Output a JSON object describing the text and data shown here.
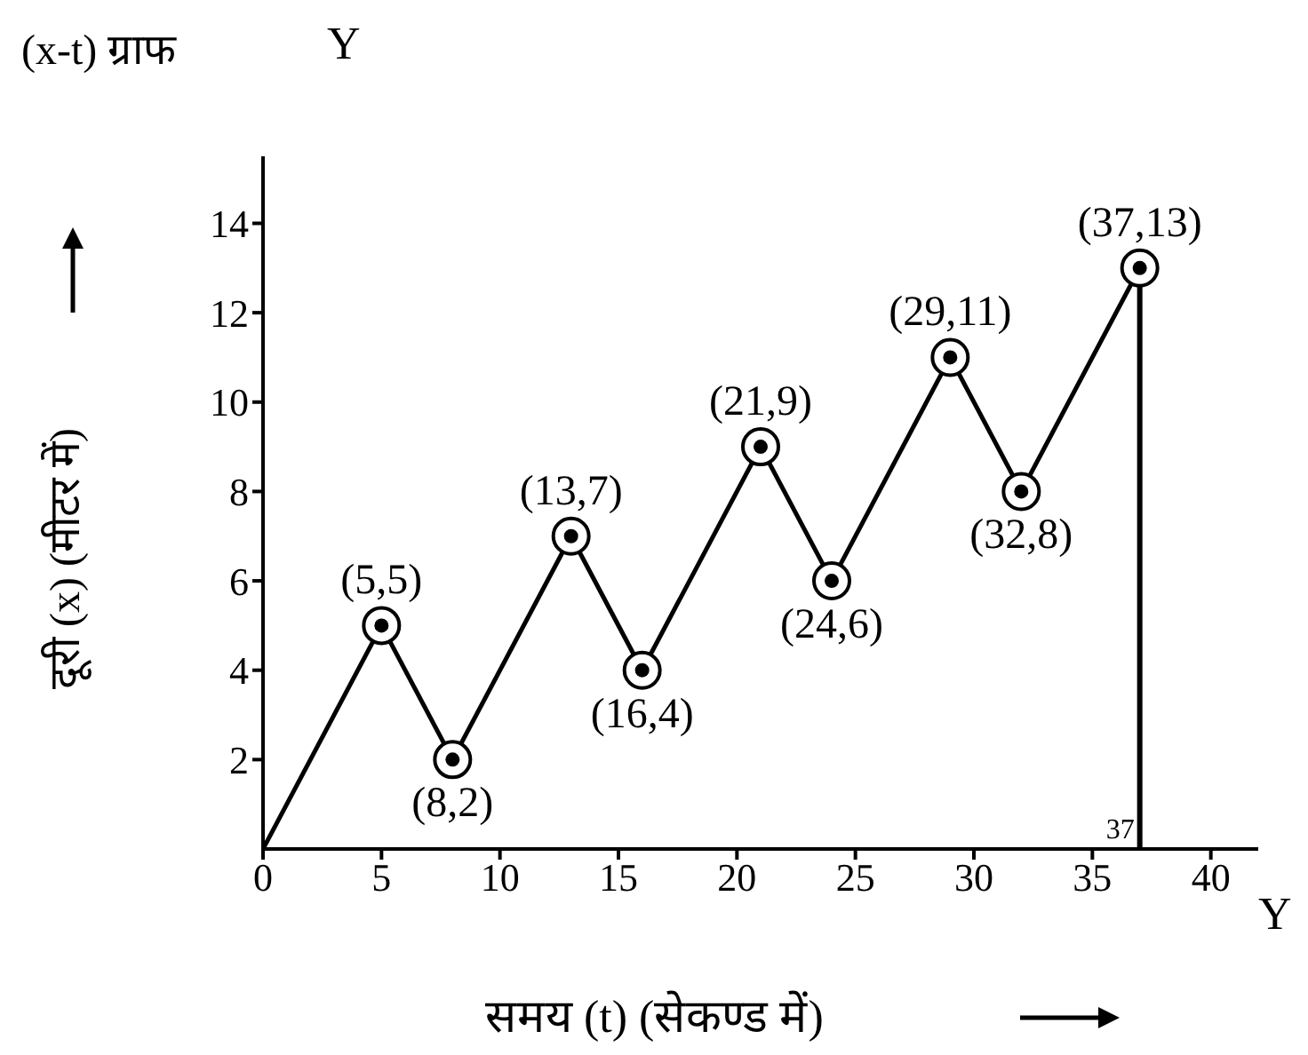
{
  "chart_data": {
    "type": "line",
    "title": "(x-t) ग्राफ",
    "xlabel": "समय (t) (सेकण्ड में)",
    "ylabel": "दूरी (x) (मीटर में)",
    "annotations": [
      "Y",
      "Y",
      {
        "text": "(5,5)",
        "x": 5,
        "y": 5
      },
      {
        "text": "(8,2)",
        "x": 8,
        "y": 2
      },
      {
        "text": "(13,7)",
        "x": 13,
        "y": 7
      },
      {
        "text": "(16,4)",
        "x": 16,
        "y": 4
      },
      {
        "text": "(21,9)",
        "x": 21,
        "y": 9
      },
      {
        "text": "(24,6)",
        "x": 24,
        "y": 6
      },
      {
        "text": "(29,11)",
        "x": 29,
        "y": 11
      },
      {
        "text": "(32,8)",
        "x": 32,
        "y": 8
      },
      {
        "text": "(37,13)",
        "x": 37,
        "y": 13
      }
    ],
    "x": [
      0,
      5,
      8,
      13,
      16,
      21,
      24,
      29,
      32,
      37
    ],
    "series": [
      {
        "color": "#000000",
        "values": [
          0,
          5,
          2,
          7,
          4,
          9,
          6,
          11,
          8,
          13
        ]
      }
    ],
    "xlim": [
      0,
      42
    ],
    "xticks": [
      0,
      5,
      10,
      15,
      20,
      25,
      30,
      35,
      40
    ],
    "ylim": [
      0,
      15.5
    ],
    "yticks": [
      2,
      4,
      6,
      8,
      10,
      12,
      14
    ],
    "ref_lines": [
      {
        "axis": "x",
        "value": 37,
        "label": "37"
      }
    ],
    "marker": "circle",
    "grid": false
  }
}
